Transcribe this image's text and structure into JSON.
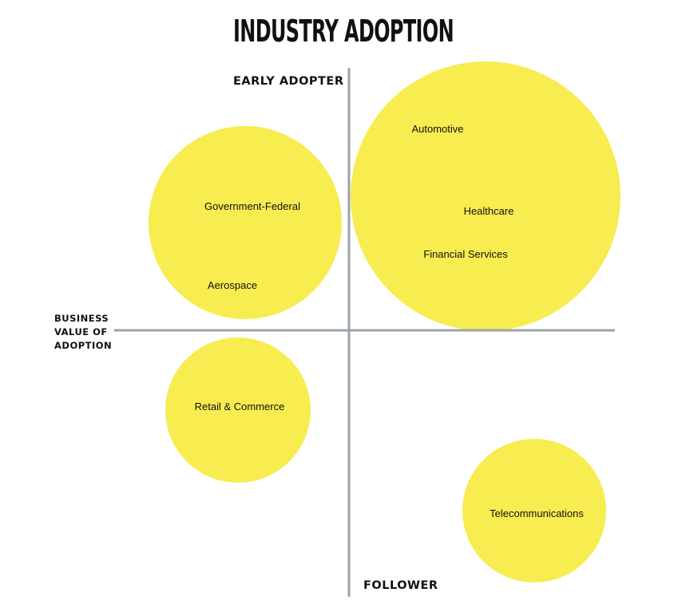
{
  "title": "INDUSTRY ADOPTION",
  "axes": {
    "top": "EARLY ADOPTER",
    "bottom": "FOLLOWER",
    "left_lines": [
      "BUSINESS",
      "VALUE OF",
      "ADOPTION"
    ]
  },
  "colors": {
    "bubble": "#f7ec50",
    "axis": "#9aa3a8",
    "text": "#111111"
  },
  "bubble_groups": [
    {
      "labels": [
        "Automotive",
        "Healthcare",
        "Financial Services"
      ]
    },
    {
      "labels": [
        "Government-Federal",
        "Aerospace"
      ]
    },
    {
      "labels": [
        "Retail & Commerce"
      ]
    },
    {
      "labels": [
        "Telecommunications"
      ]
    }
  ]
}
